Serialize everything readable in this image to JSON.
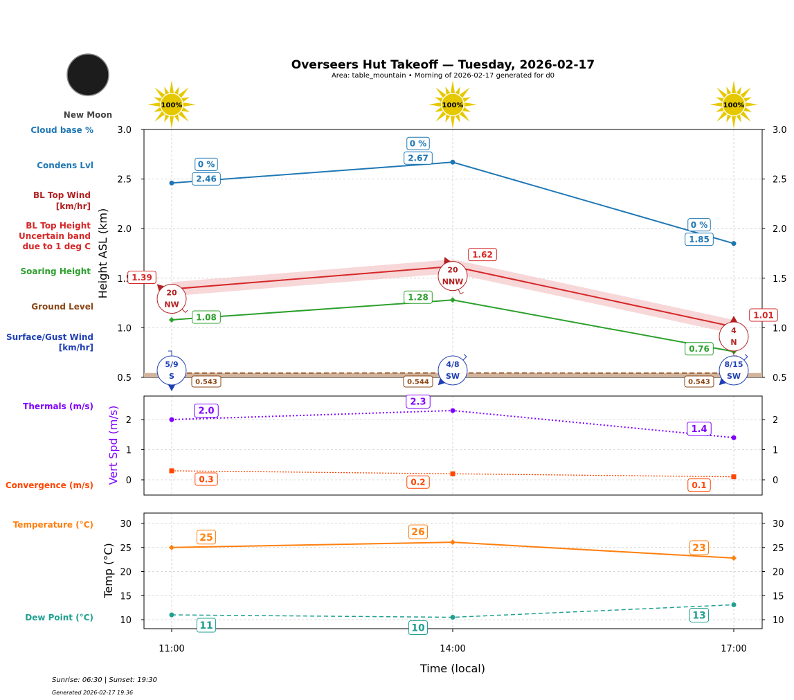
{
  "header": {
    "title": "Overseers Hut Takeoff — Tuesday, 2026-02-17",
    "subtitle": "Area: table_mountain • Morning of 2026-02-17 generated for d0",
    "moon_phase": "New Moon",
    "sun_labels": [
      "100%",
      "100%",
      "100%"
    ]
  },
  "footer": {
    "sun_times": "Sunrise: 06:30 | Sunset: 19:30",
    "generated": "Generated 2026-02-17 19:36"
  },
  "side_labels": {
    "cloud_base": "Cloud base %",
    "condens": "Condens Lvl",
    "bl_wind_1": "BL Top Wind",
    "bl_wind_2": "[km/hr]",
    "bl_top_1": "BL Top Height",
    "bl_top_2": "Uncertain band",
    "bl_top_3": "due to 1 deg C",
    "soaring": "Soaring Height",
    "ground": "Ground Level",
    "surface_1": "Surface/Gust Wind",
    "surface_2": "[km/hr]",
    "thermals": "Thermals (m/s)",
    "convergence": "Convergence (m/s)",
    "temperature": "Temperature (°C)",
    "dew_point": "Dew Point (°C)"
  },
  "colors": {
    "cloud": "#1f77b4",
    "bl_wind": "#b22222",
    "bl_top": "#d62728",
    "band": "#f4c6c7",
    "soaring": "#2ca02c",
    "ground": "#8b4513",
    "ground_fill": "#d2b49c",
    "surface": "#1f3fb4",
    "thermals": "#8000ff",
    "convergence": "#ff4500",
    "temperature": "#ff7f0e",
    "dew": "#20a090",
    "sun": "#e6c800"
  },
  "chart_data": [
    {
      "type": "line",
      "ylabel": "Height ASL (km)",
      "ylim": [
        0.5,
        3.0
      ],
      "yticks": [
        "0.5",
        "1.0",
        "1.5",
        "2.0",
        "2.5",
        "3.0"
      ],
      "grid": true,
      "x": [
        "11:00",
        "14:00",
        "17:00"
      ],
      "series": [
        {
          "name": "Condens Lvl",
          "values": [
            2.46,
            2.67,
            1.85
          ],
          "labels": [
            "2.46",
            "2.67",
            "1.85"
          ],
          "cloud_base_labels": [
            "0 %",
            "0 %",
            "0 %"
          ]
        },
        {
          "name": "BL Top Height",
          "values": [
            1.39,
            1.62,
            1.01
          ],
          "labels": [
            "1.39",
            "1.62",
            "1.01"
          ],
          "band": [
            [
              1.32,
              1.46
            ],
            [
              1.55,
              1.69
            ],
            [
              0.94,
              1.08
            ]
          ]
        },
        {
          "name": "Soaring Height",
          "values": [
            1.08,
            1.28,
            0.76
          ],
          "labels": [
            "1.08",
            "1.28",
            "0.76"
          ]
        },
        {
          "name": "Ground Level",
          "values": [
            0.543,
            0.544,
            0.543
          ],
          "labels": [
            "0.543",
            "0.544",
            "0.543"
          ]
        }
      ],
      "bl_top_wind": [
        {
          "speed": "20",
          "dir": "NW"
        },
        {
          "speed": "20",
          "dir": "NNW"
        },
        {
          "speed": "4",
          "dir": "N"
        }
      ],
      "surface_wind": [
        {
          "speed": "5/9",
          "dir": "S"
        },
        {
          "speed": "4/8",
          "dir": "SW"
        },
        {
          "speed": "8/15",
          "dir": "SW"
        }
      ]
    },
    {
      "type": "line",
      "ylabel": "Vert Spd (m/s)",
      "ylim": [
        -0.5,
        2.78
      ],
      "yticks": [
        "0",
        "1",
        "2"
      ],
      "grid": true,
      "series": [
        {
          "name": "Thermals (m/s)",
          "values": [
            2.0,
            2.3,
            1.4
          ],
          "labels": [
            "2.0",
            "2.3",
            "1.4"
          ]
        },
        {
          "name": "Convergence (m/s)",
          "values": [
            0.3,
            0.2,
            0.1
          ],
          "labels": [
            "0.3",
            "0.2",
            "0.1"
          ]
        }
      ]
    },
    {
      "type": "line",
      "ylabel": "Temp (°C)",
      "xlabel": "Time (local)",
      "ylim": [
        8.1,
        32.2
      ],
      "yticks": [
        "10",
        "15",
        "20",
        "25",
        "30"
      ],
      "xticks": [
        "11:00",
        "14:00",
        "17:00"
      ],
      "grid": true,
      "series": [
        {
          "name": "Temperature (°C)",
          "values": [
            25.0,
            26.1,
            22.8
          ],
          "labels": [
            "25",
            "26",
            "23"
          ]
        },
        {
          "name": "Dew Point (°C)",
          "values": [
            11.0,
            10.5,
            13.1
          ],
          "labels": [
            "11",
            "10",
            "13"
          ]
        }
      ]
    }
  ]
}
